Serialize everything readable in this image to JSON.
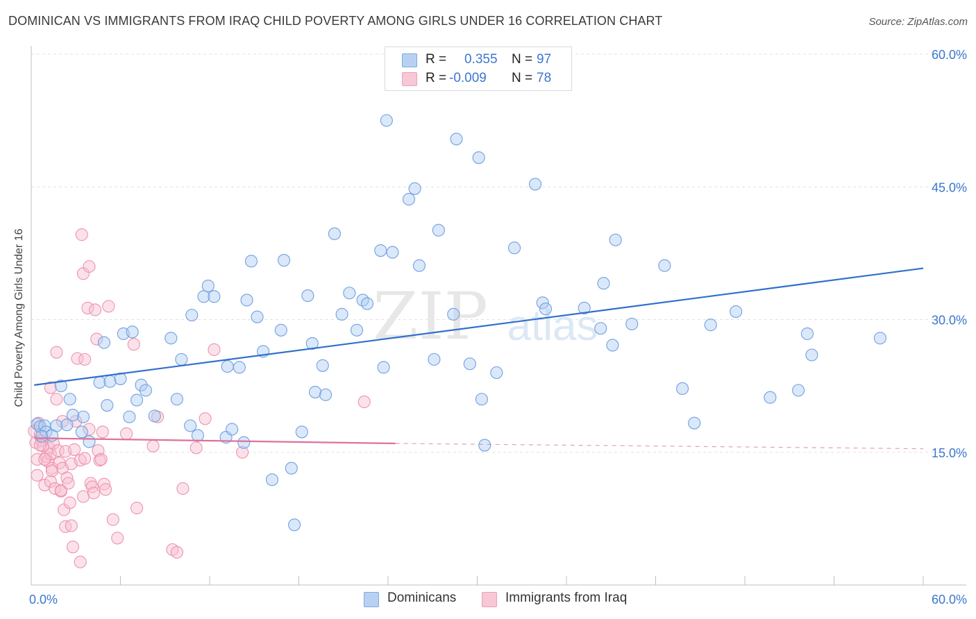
{
  "header": {
    "title": "DOMINICAN VS IMMIGRANTS FROM IRAQ CHILD POVERTY AMONG GIRLS UNDER 16 CORRELATION CHART",
    "source": "Source: ZipAtlas.com"
  },
  "watermark": {
    "zip": "ZIP",
    "atlas": "atlas"
  },
  "legend": {
    "r_label": "R =",
    "n_label": "N =",
    "rows": [
      {
        "r": "0.355",
        "n": "97"
      },
      {
        "r": "-0.009",
        "n": "78"
      }
    ]
  },
  "bottom_legend": {
    "series1": "Dominicans",
    "series2": "Immigrants from Iraq"
  },
  "colors": {
    "blue_fill": "#aecbf1",
    "blue_stroke": "#6fa0e0",
    "blue_line": "#2f6fcc",
    "pink_fill": "#f6bfd0",
    "pink_stroke": "#ee92ae",
    "pink_line": "#e0709a",
    "accent_text": "#3b76d0"
  },
  "chart_data": {
    "type": "scatter",
    "title": "DOMINICAN VS IMMIGRANTS FROM IRAQ CHILD POVERTY AMONG GIRLS UNDER 16 CORRELATION CHART",
    "xlabel": "",
    "ylabel": "Child Poverty Among Girls Under 16",
    "xlim": [
      0,
      60
    ],
    "ylim": [
      0,
      60
    ],
    "x_tick_labels": [
      "0.0%",
      "60.0%"
    ],
    "y_tick_labels": [
      "15.0%",
      "30.0%",
      "45.0%",
      "60.0%"
    ],
    "y_ticks": [
      15,
      30,
      45,
      60
    ],
    "grid": true,
    "legend_position": "top-center",
    "series": [
      {
        "name": "Dominicans",
        "r": 0.355,
        "n": 97,
        "trend": {
          "x": [
            0.2,
            60
          ],
          "y": [
            22.6,
            35.8
          ]
        },
        "points": [
          [
            0.4,
            18.2
          ],
          [
            0.6,
            17.9
          ],
          [
            0.9,
            18.0
          ],
          [
            1.0,
            17.3
          ],
          [
            1.4,
            16.9
          ],
          [
            1.7,
            18.0
          ],
          [
            2.4,
            18.1
          ],
          [
            0.7,
            16.8
          ],
          [
            2.0,
            22.5
          ],
          [
            3.5,
            19.0
          ],
          [
            3.4,
            17.3
          ],
          [
            2.6,
            21.0
          ],
          [
            2.8,
            19.2
          ],
          [
            3.9,
            16.2
          ],
          [
            4.6,
            22.9
          ],
          [
            5.1,
            20.3
          ],
          [
            5.3,
            23.0
          ],
          [
            6.0,
            23.3
          ],
          [
            6.6,
            19.0
          ],
          [
            7.4,
            22.6
          ],
          [
            7.1,
            20.9
          ],
          [
            7.7,
            22.0
          ],
          [
            8.3,
            19.1
          ],
          [
            9.8,
            21.0
          ],
          [
            10.7,
            18.0
          ],
          [
            4.9,
            27.4
          ],
          [
            6.2,
            28.4
          ],
          [
            6.8,
            28.6
          ],
          [
            9.4,
            27.9
          ],
          [
            10.8,
            30.5
          ],
          [
            10.1,
            25.5
          ],
          [
            11.2,
            16.9
          ],
          [
            11.6,
            32.6
          ],
          [
            12.3,
            32.6
          ],
          [
            11.9,
            33.8
          ],
          [
            13.2,
            24.7
          ],
          [
            13.1,
            16.7
          ],
          [
            13.5,
            17.6
          ],
          [
            14.0,
            24.6
          ],
          [
            14.5,
            32.2
          ],
          [
            14.3,
            16.1
          ],
          [
            14.8,
            36.6
          ],
          [
            15.2,
            30.3
          ],
          [
            15.6,
            26.4
          ],
          [
            16.2,
            11.9
          ],
          [
            16.8,
            28.8
          ],
          [
            17.5,
            13.2
          ],
          [
            17.0,
            36.7
          ],
          [
            17.7,
            6.8
          ],
          [
            18.2,
            17.3
          ],
          [
            18.6,
            32.7
          ],
          [
            18.9,
            27.3
          ],
          [
            19.1,
            21.8
          ],
          [
            19.6,
            24.8
          ],
          [
            19.8,
            21.5
          ],
          [
            20.4,
            39.7
          ],
          [
            20.9,
            30.6
          ],
          [
            21.4,
            33.0
          ],
          [
            21.9,
            28.8
          ],
          [
            22.3,
            32.2
          ],
          [
            22.6,
            31.8
          ],
          [
            23.5,
            37.8
          ],
          [
            23.7,
            24.6
          ],
          [
            23.9,
            52.5
          ],
          [
            24.3,
            37.6
          ],
          [
            25.4,
            43.6
          ],
          [
            25.8,
            44.8
          ],
          [
            26.1,
            36.1
          ],
          [
            27.1,
            25.5
          ],
          [
            27.4,
            40.1
          ],
          [
            28.6,
            50.4
          ],
          [
            28.4,
            30.6
          ],
          [
            29.5,
            25.0
          ],
          [
            30.1,
            48.3
          ],
          [
            30.3,
            21.0
          ],
          [
            30.5,
            15.8
          ],
          [
            31.3,
            24.0
          ],
          [
            32.5,
            38.1
          ],
          [
            33.9,
            45.3
          ],
          [
            34.4,
            31.9
          ],
          [
            34.6,
            31.2
          ],
          [
            37.2,
            31.3
          ],
          [
            38.3,
            29.0
          ],
          [
            38.5,
            34.1
          ],
          [
            39.1,
            27.1
          ],
          [
            39.3,
            39.0
          ],
          [
            40.4,
            29.5
          ],
          [
            42.6,
            36.1
          ],
          [
            43.8,
            22.2
          ],
          [
            44.6,
            18.3
          ],
          [
            45.7,
            29.4
          ],
          [
            47.4,
            30.9
          ],
          [
            49.7,
            21.2
          ],
          [
            51.6,
            22.0
          ],
          [
            52.2,
            28.4
          ],
          [
            52.5,
            26.0
          ],
          [
            57.1,
            27.9
          ]
        ]
      },
      {
        "name": "Immigrants from Iraq",
        "r": -0.009,
        "n": 78,
        "trend": {
          "x": [
            0.2,
            24.5
          ],
          "y": [
            16.6,
            16.0
          ]
        },
        "trend_dashed": {
          "x": [
            24.5,
            60
          ],
          "y": [
            16.0,
            15.4
          ]
        },
        "points": [
          [
            0.2,
            17.4
          ],
          [
            0.3,
            16.1
          ],
          [
            0.4,
            14.2
          ],
          [
            0.4,
            12.4
          ],
          [
            0.5,
            18.3
          ],
          [
            0.6,
            17.0
          ],
          [
            0.7,
            16.3
          ],
          [
            0.8,
            15.7
          ],
          [
            0.9,
            11.3
          ],
          [
            1.0,
            14.5
          ],
          [
            1.1,
            14.0
          ],
          [
            1.2,
            15.5
          ],
          [
            1.3,
            11.7
          ],
          [
            1.3,
            14.8
          ],
          [
            1.3,
            22.3
          ],
          [
            1.4,
            13.2
          ],
          [
            1.5,
            16.0
          ],
          [
            1.6,
            10.9
          ],
          [
            1.7,
            21.0
          ],
          [
            1.7,
            26.3
          ],
          [
            1.8,
            15.2
          ],
          [
            1.9,
            13.8
          ],
          [
            2.0,
            10.6
          ],
          [
            2.0,
            10.7
          ],
          [
            2.1,
            13.2
          ],
          [
            2.2,
            8.5
          ],
          [
            2.3,
            6.6
          ],
          [
            2.3,
            15.1
          ],
          [
            2.4,
            12.1
          ],
          [
            2.5,
            11.5
          ],
          [
            2.6,
            9.3
          ],
          [
            2.7,
            13.7
          ],
          [
            2.7,
            6.7
          ],
          [
            2.8,
            4.3
          ],
          [
            2.9,
            15.3
          ],
          [
            3.0,
            18.5
          ],
          [
            3.1,
            25.6
          ],
          [
            3.3,
            14.1
          ],
          [
            3.3,
            2.6
          ],
          [
            3.4,
            39.6
          ],
          [
            3.5,
            35.2
          ],
          [
            3.5,
            10.0
          ],
          [
            3.6,
            25.5
          ],
          [
            3.8,
            31.3
          ],
          [
            3.9,
            36.0
          ],
          [
            3.9,
            17.6
          ],
          [
            4.0,
            11.5
          ],
          [
            4.1,
            11.1
          ],
          [
            4.2,
            10.4
          ],
          [
            4.3,
            31.1
          ],
          [
            4.4,
            27.8
          ],
          [
            4.5,
            15.2
          ],
          [
            4.6,
            14.1
          ],
          [
            4.7,
            14.2
          ],
          [
            4.8,
            17.3
          ],
          [
            4.9,
            11.4
          ],
          [
            5.0,
            10.8
          ],
          [
            5.2,
            31.5
          ],
          [
            5.5,
            7.4
          ],
          [
            5.8,
            5.3
          ],
          [
            6.4,
            17.1
          ],
          [
            6.9,
            27.2
          ],
          [
            7.1,
            8.7
          ],
          [
            8.2,
            15.7
          ],
          [
            8.5,
            19.0
          ],
          [
            9.5,
            4.0
          ],
          [
            9.8,
            3.7
          ],
          [
            10.2,
            10.9
          ],
          [
            11.1,
            15.5
          ],
          [
            11.7,
            18.8
          ],
          [
            12.3,
            26.6
          ],
          [
            14.2,
            15.0
          ],
          [
            22.4,
            20.7
          ],
          [
            0.9,
            14.2
          ],
          [
            1.4,
            12.9
          ],
          [
            2.1,
            18.5
          ],
          [
            3.6,
            14.3
          ],
          [
            0.6,
            15.8
          ]
        ]
      }
    ]
  }
}
